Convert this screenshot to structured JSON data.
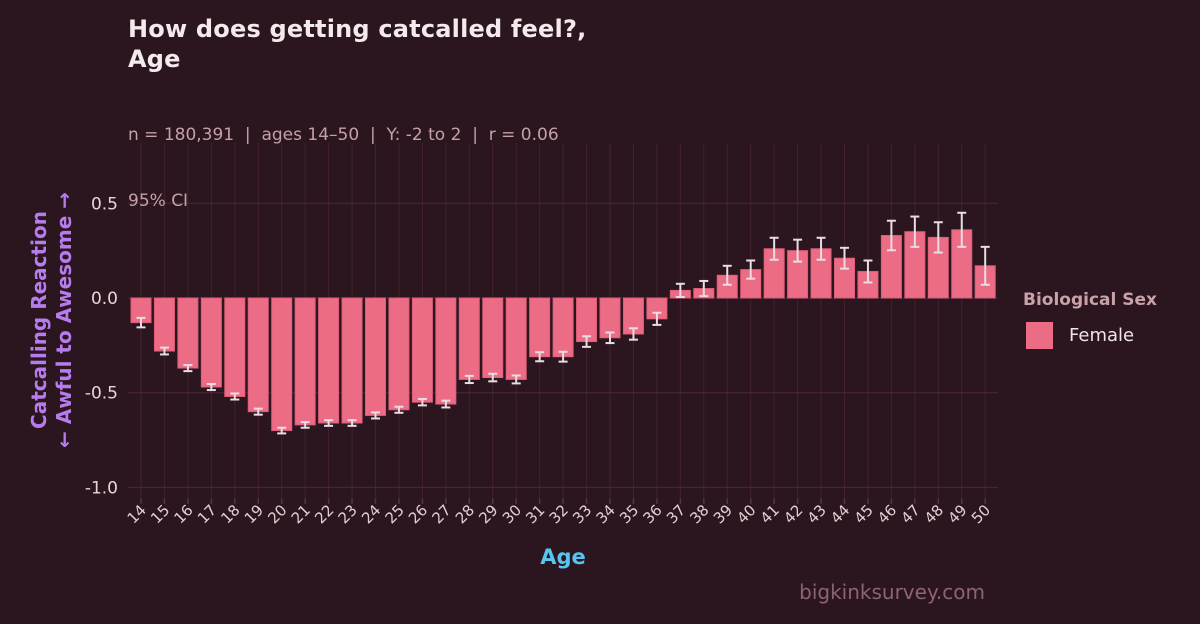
{
  "header": {
    "title_line1": "How does getting catcalled feel?,",
    "title_line2": "Age",
    "subtitle": "n = 180,391  |  ages 14–50  |  Y: -2 to 2  |  r = 0.06",
    "subtitle2": "95% CI"
  },
  "axes": {
    "y_label_line1": "Catcalling Reaction",
    "y_label_line2": "← Awful to Awesome →",
    "x_label": "Age"
  },
  "legend": {
    "title": "Biological Sex",
    "items": [
      {
        "label": "Female",
        "color": "#ed6c85"
      }
    ]
  },
  "watermark": "bigkinksurvey.com",
  "colors": {
    "background": "#2b1620",
    "bar_fill": "#ed6c85",
    "bar_stroke": "#de5d78",
    "error_bar": "#e8dde2",
    "grid_vertical": "#44212c",
    "grid_horizontal": "#4e2734",
    "tick_mark": "#573041",
    "x_tick_text": "#e0ced2",
    "y_tick_text": "#e6d5d8",
    "accent_y_label": "#b67bed",
    "accent_x_label": "#58c4f0"
  },
  "chart_data": {
    "type": "bar",
    "title": "How does getting catcalled feel?, Age",
    "xlabel": "Age",
    "ylabel": "Catcalling Reaction — Awful to Awesome",
    "annotation": "95% CI error bars",
    "legend_position": "right",
    "grid": true,
    "categories": [
      14,
      15,
      16,
      17,
      18,
      19,
      20,
      21,
      22,
      23,
      24,
      25,
      26,
      27,
      28,
      29,
      30,
      31,
      32,
      33,
      34,
      35,
      36,
      37,
      38,
      39,
      40,
      41,
      42,
      43,
      44,
      45,
      46,
      47,
      48,
      49,
      50
    ],
    "series": [
      {
        "name": "Female",
        "values": [
          -0.13,
          -0.28,
          -0.37,
          -0.47,
          -0.52,
          -0.6,
          -0.7,
          -0.67,
          -0.66,
          -0.66,
          -0.62,
          -0.59,
          -0.55,
          -0.56,
          -0.43,
          -0.42,
          -0.43,
          -0.31,
          -0.31,
          -0.23,
          -0.21,
          -0.19,
          -0.11,
          0.04,
          0.05,
          0.12,
          0.15,
          0.26,
          0.25,
          0.26,
          0.21,
          0.14,
          0.33,
          0.35,
          0.32,
          0.36,
          0.17
        ],
        "ci95_half_width": [
          0.025,
          0.018,
          0.016,
          0.016,
          0.016,
          0.016,
          0.015,
          0.015,
          0.015,
          0.015,
          0.016,
          0.016,
          0.017,
          0.018,
          0.019,
          0.02,
          0.021,
          0.024,
          0.026,
          0.028,
          0.028,
          0.03,
          0.032,
          0.035,
          0.04,
          0.05,
          0.048,
          0.058,
          0.058,
          0.058,
          0.055,
          0.058,
          0.078,
          0.08,
          0.08,
          0.09,
          0.1
        ]
      }
    ],
    "y_ticks": [
      0.5,
      0.0,
      -0.5,
      -1.0
    ],
    "ylim": [
      -1.05,
      0.82
    ]
  }
}
